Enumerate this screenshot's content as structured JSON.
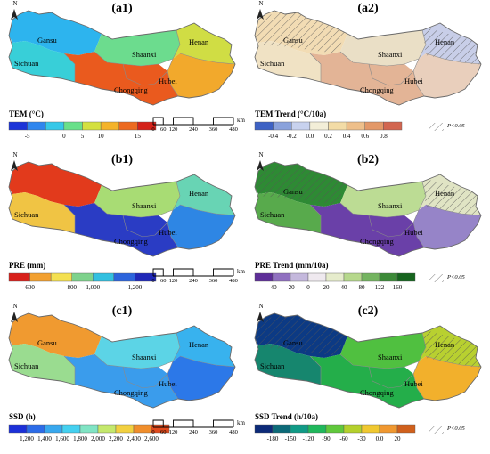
{
  "panels": [
    {
      "id": "a1",
      "label": "(a1)",
      "legend_title": "TEM (°C)",
      "ticks": [
        "-5",
        "0",
        "5",
        "10",
        "15"
      ],
      "colors": [
        "#1c34d8",
        "#2f86ee",
        "#36c8e8",
        "#69e08a",
        "#d4e040",
        "#f4b32a",
        "#ec6a20",
        "#d4221a"
      ],
      "region_colors": [
        "#2db4ee",
        "#38cfd8",
        "#6cdc8e",
        "#d0dd44",
        "#f2a92c",
        "#ea5a1e"
      ],
      "regions": [
        "Gansu",
        "Sichuan",
        "Shaanxi",
        "Henan",
        "Hubei",
        "Chongqing"
      ],
      "scalebar": true,
      "pvalue": false
    },
    {
      "id": "a2",
      "label": "(a2)",
      "legend_title": "TEM Trend (°C/10a)",
      "ticks": [
        "-0.4",
        "-0.2",
        "0.0",
        "0.2",
        "0.4",
        "0.6",
        "0.8"
      ],
      "colors": [
        "#3e62c4",
        "#8aa2dc",
        "#c8d2ee",
        "#f3eed8",
        "#f3dca6",
        "#eebf8a",
        "#e39868",
        "#d26650"
      ],
      "region_colors": [
        "#f2dcb4",
        "#f0e2c4",
        "#eadfc6",
        "#c8cee8",
        "#e9cfbc",
        "#e3b496"
      ],
      "regions": [
        "Gansu",
        "Sichuan",
        "Shaanxi",
        "Henan",
        "Hubei",
        "Chongqing"
      ],
      "scalebar": false,
      "pvalue": true,
      "pvalue_text": "P<0.05"
    },
    {
      "id": "b1",
      "label": "(b1)",
      "legend_title": "PRE (mm)",
      "ticks": [
        "600",
        "800",
        "1,000",
        "1,200"
      ],
      "colors": [
        "#d8201a",
        "#f2a030",
        "#f4e050",
        "#7ed28c",
        "#32c0e0",
        "#2c64dc",
        "#2028b8"
      ],
      "region_colors": [
        "#e23a1c",
        "#f0c444",
        "#a8dc74",
        "#68d4b4",
        "#2e86e4",
        "#2a3cc4"
      ],
      "regions": [
        "Sichuan",
        "Shaanxi",
        "Henan",
        "Hubei",
        "Chongqing"
      ],
      "scalebar": true,
      "pvalue": false
    },
    {
      "id": "b2",
      "label": "(b2)",
      "legend_title": "PRE Trend (mm/10a)",
      "ticks": [
        "-40",
        "-20",
        "0",
        "20",
        "40",
        "80",
        "122",
        "160"
      ],
      "colors": [
        "#5e2e98",
        "#9070c0",
        "#c4b8dc",
        "#efe9ef",
        "#e6eccc",
        "#b6d88c",
        "#74b460",
        "#3c8a38",
        "#16641e"
      ],
      "region_colors": [
        "#2e8a34",
        "#58aa4c",
        "#bcdc94",
        "#e0e4c4",
        "#9684c8",
        "#6a40a8"
      ],
      "regions": [
        "Gansu",
        "Sichuan",
        "Shaanxi",
        "Henan",
        "Hubei",
        "Chongqing"
      ],
      "scalebar": false,
      "pvalue": true,
      "pvalue_text": "P<0.05"
    },
    {
      "id": "c1",
      "label": "(c1)",
      "legend_title": "SSD (h)",
      "ticks": [
        "1,200",
        "1,400",
        "1,600",
        "1,800",
        "2,000",
        "2,200",
        "2,400",
        "2,600"
      ],
      "colors": [
        "#1c30d8",
        "#2c6ce8",
        "#38a8ee",
        "#44d0f0",
        "#80e4c4",
        "#c4e86c",
        "#f2d040",
        "#f08e2c",
        "#e04a1c"
      ],
      "region_colors": [
        "#f09a30",
        "#9adc90",
        "#5cd4e6",
        "#38b2ee",
        "#2c78e8",
        "#3a9cec"
      ],
      "regions": [
        "Gansu",
        "Sichuan",
        "Shaanxi",
        "Henan",
        "Hubei",
        "Chongqing"
      ],
      "scalebar": true,
      "pvalue": false
    },
    {
      "id": "c2",
      "label": "(c2)",
      "legend_title": "SSD Trend (h/10a)",
      "ticks": [
        "-180",
        "-150",
        "-120",
        "-90",
        "-60",
        "-30",
        "0.0",
        "20"
      ],
      "colors": [
        "#0c2a78",
        "#0c6a78",
        "#109a86",
        "#20b85c",
        "#60c83c",
        "#b4d02c",
        "#f0c830",
        "#f09830",
        "#d0601c"
      ],
      "region_colors": [
        "#0c3a84",
        "#16866e",
        "#50c040",
        "#b8d030",
        "#f2b02c",
        "#24ae4a"
      ],
      "regions": [
        "Gansu",
        "Sichuan",
        "Shaanxi",
        "Henan",
        "Hubei",
        "Chongqing"
      ],
      "scalebar": false,
      "pvalue": true,
      "pvalue_text": "P<0.05"
    }
  ],
  "north_label": "N",
  "scalebar": {
    "ticks": [
      "0",
      "60",
      "120",
      "240",
      "360",
      "480"
    ],
    "unit": "km"
  }
}
